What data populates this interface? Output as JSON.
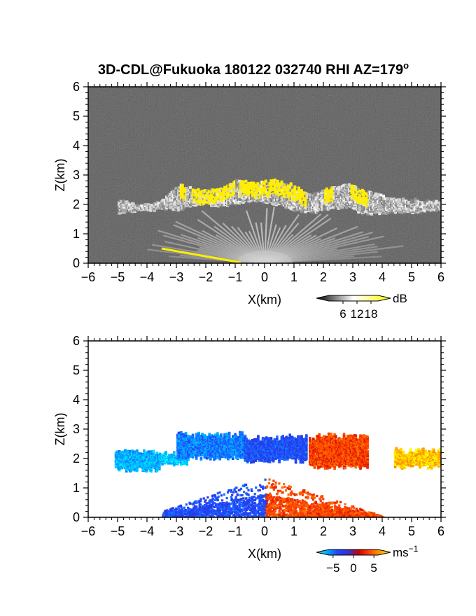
{
  "title": "3D-CDL@Fukuoka 180122 032740 RHI AZ=179",
  "title_superscript": "o",
  "chart_data": [
    {
      "type": "heatmap",
      "field": "backscatter",
      "xlabel": "X(km)",
      "ylabel": "Z(km)",
      "xlim": [
        -6,
        6
      ],
      "ylim": [
        0,
        6
      ],
      "xticks": [
        "-6",
        "-5",
        "-4",
        "-3",
        "-2",
        "-1",
        "0",
        "1",
        "2",
        "3",
        "4",
        "5",
        "6"
      ],
      "yticks": [
        "0",
        "1",
        "2",
        "3",
        "4",
        "5",
        "6"
      ],
      "colorbar": {
        "unit": "dB",
        "ticks": [
          "6",
          "12",
          "18"
        ],
        "tick_values": [
          6,
          12,
          18
        ],
        "range": [
          0,
          21
        ],
        "colors": [
          "#000000",
          "#ffffff",
          "#ffff00"
        ]
      },
      "background_color": "#262626",
      "features": {
        "cloud_layer": {
          "x_range": [
            -5.0,
            6.0
          ],
          "z_top_profile": [
            [
              -5.0,
              2.2
            ],
            [
              -4.4,
              2.0
            ],
            [
              -3.6,
              2.1
            ],
            [
              -2.9,
              2.7
            ],
            [
              -2.2,
              2.5
            ],
            [
              -1.5,
              2.6
            ],
            [
              -1.0,
              2.85
            ],
            [
              -0.4,
              2.75
            ],
            [
              0.3,
              2.85
            ],
            [
              0.9,
              2.7
            ],
            [
              1.5,
              2.35
            ],
            [
              2.2,
              2.6
            ],
            [
              2.8,
              2.75
            ],
            [
              3.3,
              2.5
            ],
            [
              4.4,
              2.2
            ],
            [
              5.0,
              2.2
            ],
            [
              6.0,
              2.1
            ]
          ],
          "z_base_profile": [
            [
              -5.0,
              1.75
            ],
            [
              -4.4,
              1.85
            ],
            [
              -3.6,
              1.9
            ],
            [
              -2.9,
              1.9
            ],
            [
              -2.2,
              2.1
            ],
            [
              -1.5,
              2.0
            ],
            [
              -1.0,
              2.1
            ],
            [
              -0.4,
              2.2
            ],
            [
              0.3,
              2.1
            ],
            [
              0.9,
              1.9
            ],
            [
              1.5,
              1.8
            ],
            [
              2.2,
              1.9
            ],
            [
              2.8,
              2.0
            ],
            [
              3.3,
              1.75
            ],
            [
              4.4,
              1.8
            ],
            [
              5.0,
              1.8
            ],
            [
              6.0,
              1.9
            ]
          ],
          "saturated_segments": [
            [
              -2.9,
              -2.7
            ],
            [
              -2.5,
              -1.0
            ],
            [
              -0.9,
              1.4
            ],
            [
              2.0,
              2.3
            ],
            [
              2.9,
              3.5
            ]
          ]
        },
        "near_ground_fan": {
          "x_range": [
            -3.5,
            1.0
          ],
          "z_max": 1.0
        },
        "ground_clutter_line": {
          "x_range": [
            -3.5,
            -0.8
          ],
          "z_range": [
            0.5,
            0.02
          ]
        }
      }
    },
    {
      "type": "heatmap",
      "field": "doppler_velocity",
      "xlabel": "X(km)",
      "ylabel": "Z(km)",
      "xlim": [
        -6,
        6
      ],
      "ylim": [
        0,
        6
      ],
      "xticks": [
        "-6",
        "-5",
        "-4",
        "-3",
        "-2",
        "-1",
        "0",
        "1",
        "2",
        "3",
        "4",
        "5",
        "6"
      ],
      "yticks": [
        "0",
        "1",
        "2",
        "3",
        "4",
        "5",
        "6"
      ],
      "colorbar": {
        "unit": "ms",
        "unit_superscript": "-1",
        "ticks": [
          "-5",
          "0",
          "5"
        ],
        "tick_values": [
          -5,
          0,
          5
        ],
        "range": [
          -6,
          6
        ],
        "colors": [
          "#00ffff",
          "#00aaff",
          "#2244ff",
          "#3333cc",
          "#cc0000",
          "#ff4400",
          "#ff9900",
          "#ffff00"
        ]
      },
      "features": {
        "cloud_layer": {
          "segments": [
            {
              "x_range": [
                -5.1,
                -3.6
              ],
              "z_range": [
                1.6,
                2.35
              ],
              "velocity": -4.5
            },
            {
              "x_range": [
                -3.6,
                -2.6
              ],
              "z_range": [
                1.8,
                2.3
              ],
              "velocity": -5.0
            },
            {
              "x_range": [
                -3.0,
                -0.7
              ],
              "z_range": [
                2.0,
                2.95
              ],
              "velocity": -3.5
            },
            {
              "x_range": [
                -0.7,
                1.4
              ],
              "z_range": [
                1.9,
                2.85
              ],
              "velocity": -2.5
            },
            {
              "x_range": [
                1.5,
                3.5
              ],
              "z_range": [
                1.7,
                2.9
              ],
              "velocity": 2.5
            },
            {
              "x_range": [
                4.4,
                6.0
              ],
              "z_range": [
                1.7,
                2.4
              ],
              "velocity": 5.0
            }
          ]
        },
        "near_ground_fan": {
          "x_range": [
            -3.5,
            4.0
          ],
          "z_max": 1.4,
          "velocity_left": -5.0,
          "velocity_right": 5.0
        }
      }
    }
  ]
}
